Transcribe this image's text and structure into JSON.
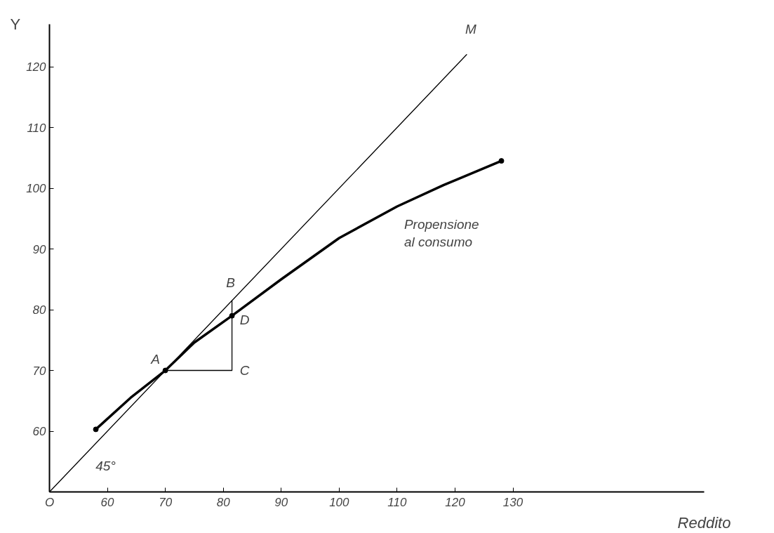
{
  "chart_data": {
    "type": "line",
    "xlabel": "Reddito",
    "ylabel": "Y",
    "xlim": [
      50,
      163
    ],
    "ylim": [
      50,
      127
    ],
    "xticks": [
      {
        "value": 50,
        "label": "O"
      },
      60,
      70,
      80,
      90,
      100,
      110,
      120,
      130
    ],
    "yticks": [
      60,
      70,
      80,
      90,
      100,
      110,
      120
    ],
    "grid": false,
    "series": [
      {
        "color": "#000000",
        "x": [
          50,
          122
        ],
        "values": [
          50,
          122
        ]
      },
      {
        "color": "#000000",
        "x": [
          58,
          64,
          70,
          75,
          81.5,
          90,
          100,
          110,
          118,
          128
        ],
        "values": [
          60.3,
          65.5,
          70,
          74.6,
          79,
          85,
          91.8,
          97,
          100.5,
          104.5
        ]
      },
      {
        "type": "scatter",
        "color": "#000000",
        "x": [
          58,
          70,
          81.5,
          128
        ],
        "values": [
          60.3,
          70,
          79,
          104.5
        ]
      },
      {
        "color": "#000000",
        "x": [
          70,
          81.5,
          81.5
        ],
        "values": [
          70,
          70,
          81.5
        ]
      }
    ],
    "annotations": [
      {
        "text": "A",
        "x": 70,
        "y": 70
      },
      {
        "text": "B",
        "x": 81.5,
        "y": 81.5
      },
      {
        "text": "C",
        "x": 81.5,
        "y": 70
      },
      {
        "text": "D",
        "x": 81.5,
        "y": 79
      },
      {
        "text": "M",
        "x": 122,
        "y": 122
      },
      {
        "text": "45°",
        "x": 58,
        "y": 58
      },
      {
        "text": "Propensione\nal consumo",
        "x": 110,
        "y": 97
      }
    ]
  }
}
